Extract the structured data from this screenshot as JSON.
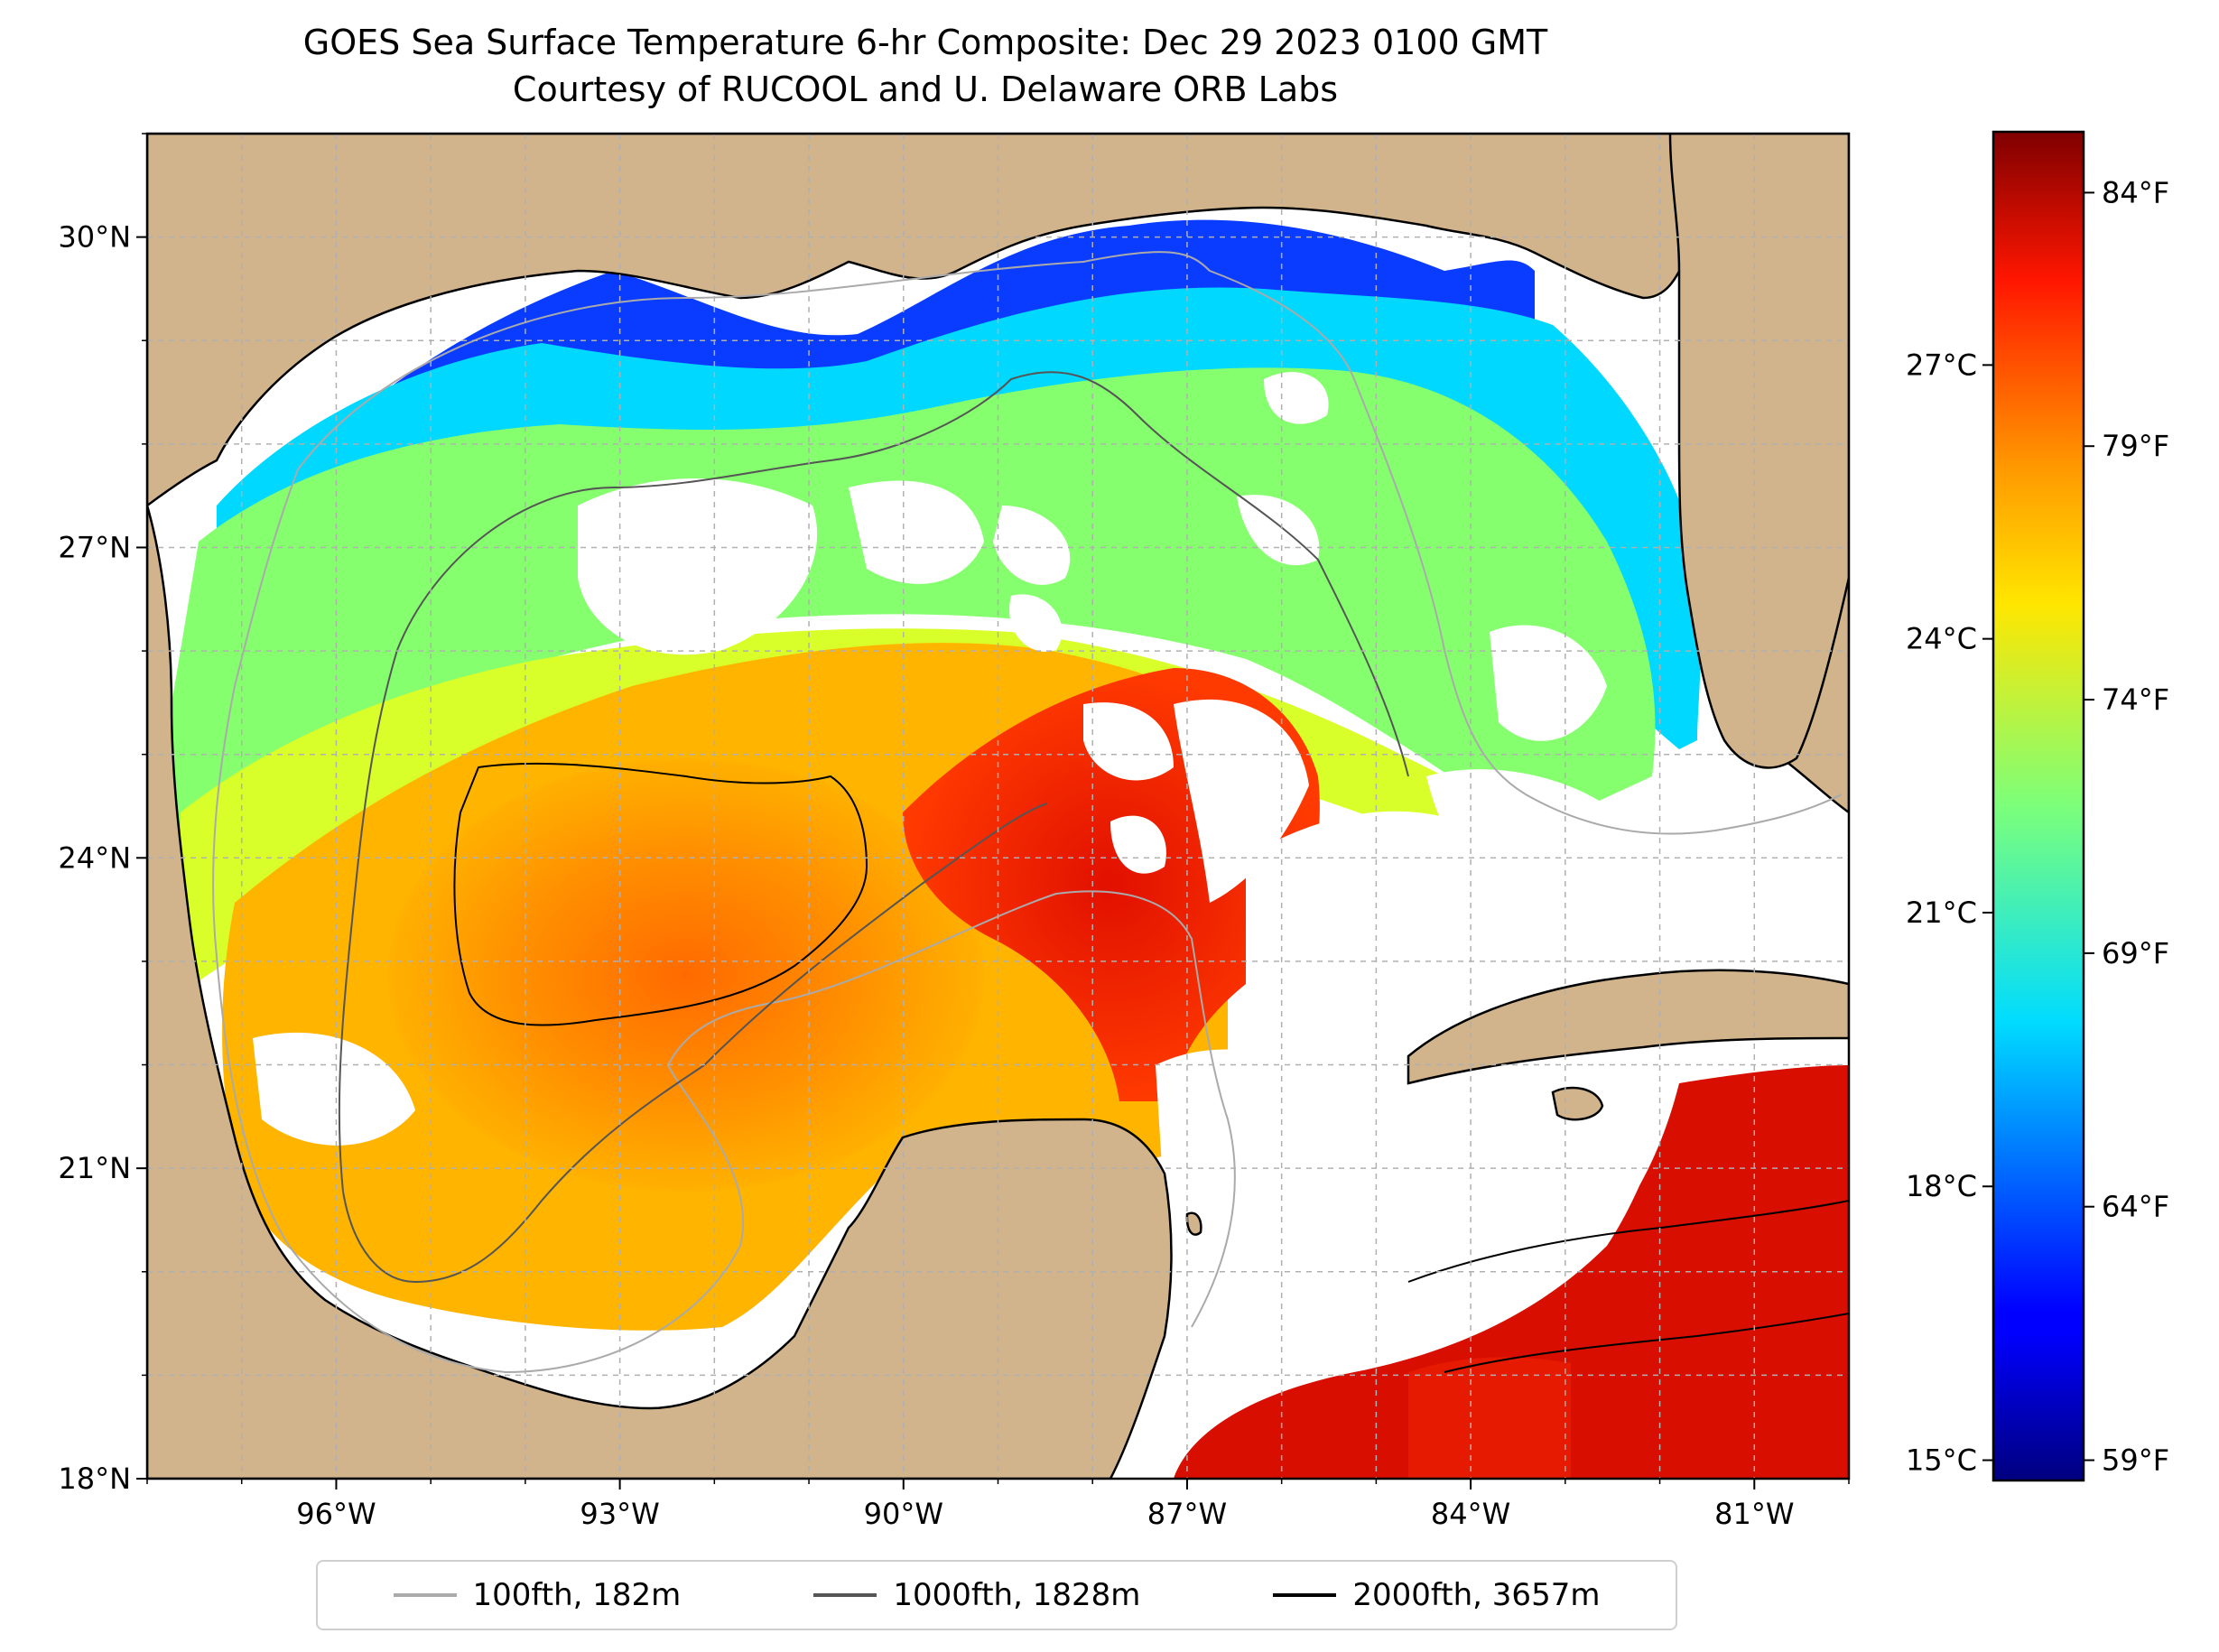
{
  "title": {
    "line1": "GOES Sea Surface Temperature 6-hr Composite: Dec 29 2023 0100 GMT",
    "line2": "Courtesy of RUCOOL and U. Delaware ORB Labs"
  },
  "map": {
    "lon_range": [
      -98,
      -80
    ],
    "lat_range": [
      18,
      31
    ],
    "lat_ticks": [
      {
        "value": 30,
        "label": "30°N"
      },
      {
        "value": 27,
        "label": "27°N"
      },
      {
        "value": 24,
        "label": "24°N"
      },
      {
        "value": 21,
        "label": "21°N"
      },
      {
        "value": 18,
        "label": "18°N"
      }
    ],
    "lon_ticks": [
      {
        "value": -96,
        "label": "96°W"
      },
      {
        "value": -93,
        "label": "93°W"
      },
      {
        "value": -90,
        "label": "90°W"
      },
      {
        "value": -87,
        "label": "87°W"
      },
      {
        "value": -84,
        "label": "84°W"
      },
      {
        "value": -81,
        "label": "81°W"
      }
    ],
    "colors": {
      "land": "#d2b48c",
      "no_data": "#ffffff",
      "grid": "#b0b0b0"
    }
  },
  "colorbar": {
    "colormap": "jet",
    "celsius_ticks": [
      {
        "value": 27,
        "label": "27°C"
      },
      {
        "value": 24,
        "label": "24°C"
      },
      {
        "value": 21,
        "label": "21°C"
      },
      {
        "value": 18,
        "label": "18°C"
      },
      {
        "value": 15,
        "label": "15°C"
      }
    ],
    "fahrenheit_ticks": [
      {
        "value": 84,
        "label": "84°F"
      },
      {
        "value": 79,
        "label": "79°F"
      },
      {
        "value": 74,
        "label": "74°F"
      },
      {
        "value": 69,
        "label": "69°F"
      },
      {
        "value": 64,
        "label": "64°F"
      },
      {
        "value": 59,
        "label": "59°F"
      }
    ],
    "range_f": [
      58.6,
      85.2
    ]
  },
  "legend": {
    "items": [
      {
        "label": "100fth, 182m",
        "color": "#aaaaaa"
      },
      {
        "label": "1000fth, 1828m",
        "color": "#555555"
      },
      {
        "label": "2000fth, 3657m",
        "color": "#000000"
      }
    ]
  }
}
